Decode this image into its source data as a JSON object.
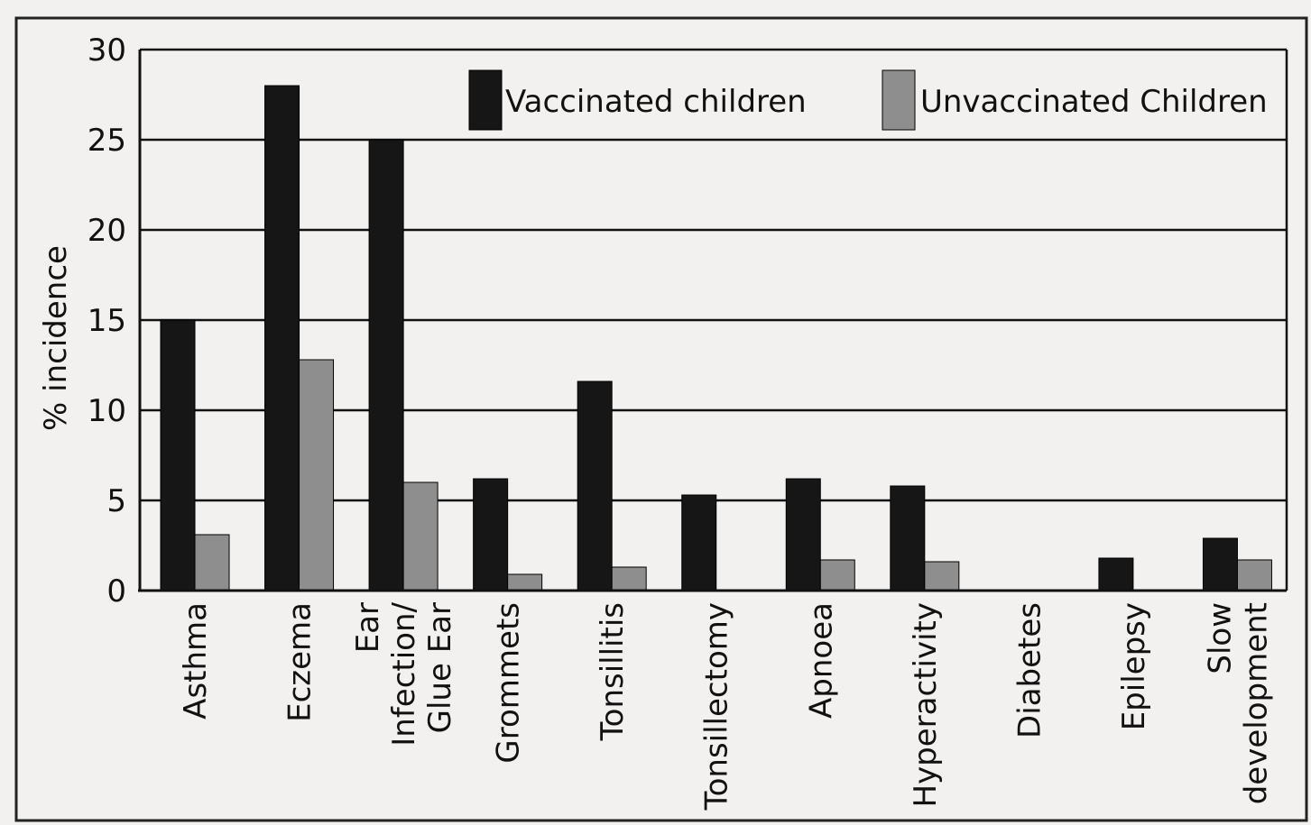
{
  "chart_data": {
    "type": "bar",
    "title": "",
    "xlabel": "",
    "ylabel": "% incidence",
    "ylim": [
      0,
      30
    ],
    "yticks": [
      "0",
      "5",
      "10",
      "15",
      "20",
      "25",
      "30"
    ],
    "grid": true,
    "legend_position": "top-right",
    "categories": [
      [
        "Asthma"
      ],
      [
        "Eczema"
      ],
      [
        "Ear",
        "Infection/",
        "Glue Ear"
      ],
      [
        "Grommets"
      ],
      [
        "Tonsillitis"
      ],
      [
        "Tonsillectomy"
      ],
      [
        "Apnoea"
      ],
      [
        "Hyperactivity"
      ],
      [
        "Diabetes"
      ],
      [
        "Epilepsy"
      ],
      [
        "Slow",
        "development"
      ]
    ],
    "series": [
      {
        "name": "Vaccinated children",
        "color": "#161616",
        "values": [
          15,
          28,
          25,
          6.2,
          11.6,
          5.3,
          6.2,
          5.8,
          0,
          1.8,
          2.9
        ]
      },
      {
        "name": "Unvaccinated Children",
        "color": "#8e8e8e",
        "values": [
          3.1,
          12.8,
          6.0,
          0.9,
          1.3,
          0,
          1.7,
          1.6,
          0,
          0,
          1.7
        ]
      }
    ]
  }
}
